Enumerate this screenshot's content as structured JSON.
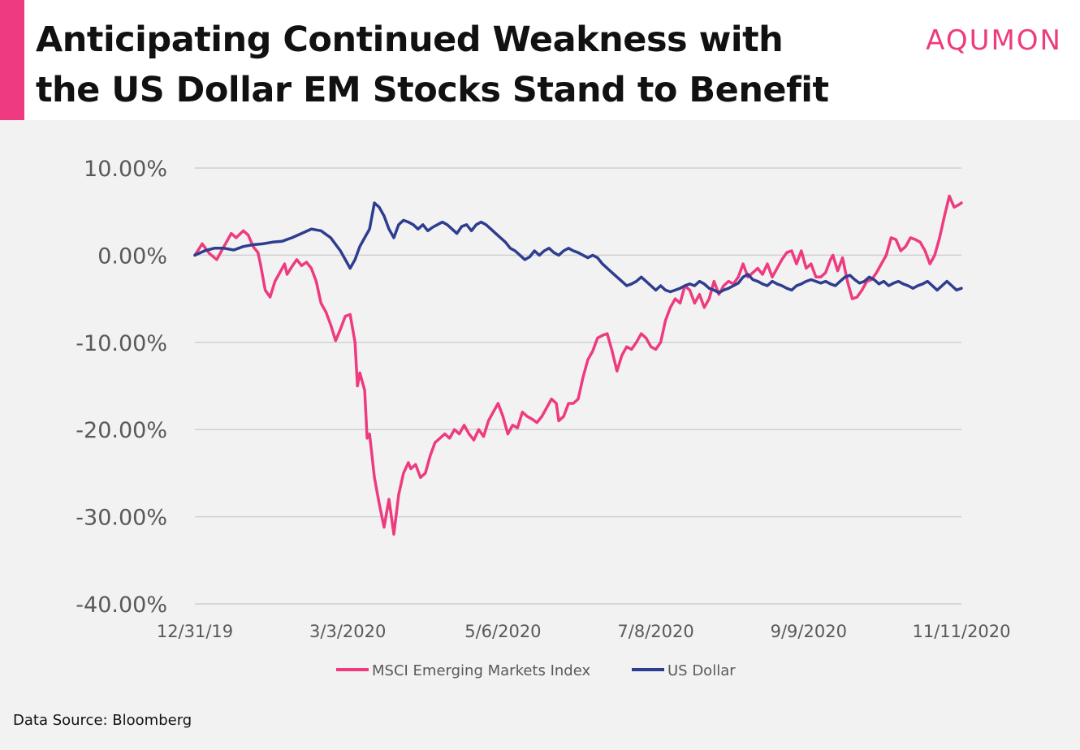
{
  "header": {
    "title_line1": "Anticipating Continued Weakness with",
    "title_line2": "the US Dollar EM Stocks Stand to Benefit",
    "logo": "AQUMON",
    "accent_color": "#ee3b7f"
  },
  "footer": {
    "source": "Data Source: Bloomberg"
  },
  "chart_data": {
    "type": "line",
    "title": "",
    "xlabel": "",
    "ylabel": "",
    "ylim": [
      -40,
      10
    ],
    "xlim": [
      0,
      316
    ],
    "y_ticks": [
      {
        "value": 10,
        "label": "10.00%"
      },
      {
        "value": 0,
        "label": "0.00%"
      },
      {
        "value": -10,
        "label": "-10.00%"
      },
      {
        "value": -20,
        "label": "-20.00%"
      },
      {
        "value": -30,
        "label": "-30.00%"
      },
      {
        "value": -40,
        "label": "-40.00%"
      }
    ],
    "x_ticks": [
      {
        "value": 0,
        "label": "12/31/19"
      },
      {
        "value": 63,
        "label": "3/3/2020"
      },
      {
        "value": 127,
        "label": "5/6/2020"
      },
      {
        "value": 190,
        "label": "7/8/2020"
      },
      {
        "value": 253,
        "label": "9/9/2020"
      },
      {
        "value": 316,
        "label": "11/11/2020"
      }
    ],
    "grid": true,
    "legend_position": "bottom",
    "x_unit": "days since 12/31/19",
    "series": [
      {
        "name": "MSCI Emerging Markets Index",
        "color": "#ee3b7f",
        "points": [
          [
            0,
            0
          ],
          [
            3,
            1.3
          ],
          [
            6,
            0.2
          ],
          [
            9,
            -0.5
          ],
          [
            12,
            1.0
          ],
          [
            15,
            2.5
          ],
          [
            17,
            2.0
          ],
          [
            20,
            2.8
          ],
          [
            22,
            2.3
          ],
          [
            24,
            1.0
          ],
          [
            26,
            0.3
          ],
          [
            27,
            -1.0
          ],
          [
            29,
            -4.0
          ],
          [
            31,
            -4.8
          ],
          [
            33,
            -3.0
          ],
          [
            35,
            -2.0
          ],
          [
            37,
            -1.0
          ],
          [
            38,
            -2.2
          ],
          [
            40,
            -1.3
          ],
          [
            42,
            -0.5
          ],
          [
            44,
            -1.2
          ],
          [
            46,
            -0.8
          ],
          [
            48,
            -1.5
          ],
          [
            50,
            -3.0
          ],
          [
            52,
            -5.5
          ],
          [
            54,
            -6.5
          ],
          [
            56,
            -8.0
          ],
          [
            58,
            -9.8
          ],
          [
            60,
            -8.5
          ],
          [
            62,
            -7.0
          ],
          [
            64,
            -6.8
          ],
          [
            66,
            -10.0
          ],
          [
            67,
            -15.0
          ],
          [
            68,
            -13.5
          ],
          [
            70,
            -15.5
          ],
          [
            71,
            -21.0
          ],
          [
            72,
            -20.5
          ],
          [
            74,
            -25.5
          ],
          [
            76,
            -28.5
          ],
          [
            78,
            -31.2
          ],
          [
            80,
            -28.0
          ],
          [
            82,
            -32.0
          ],
          [
            84,
            -27.5
          ],
          [
            86,
            -25.0
          ],
          [
            88,
            -23.8
          ],
          [
            89,
            -24.5
          ],
          [
            91,
            -24.0
          ],
          [
            93,
            -25.5
          ],
          [
            95,
            -25.0
          ],
          [
            97,
            -23.0
          ],
          [
            99,
            -21.5
          ],
          [
            101,
            -21.0
          ],
          [
            103,
            -20.5
          ],
          [
            105,
            -21.0
          ],
          [
            107,
            -20.0
          ],
          [
            109,
            -20.5
          ],
          [
            111,
            -19.5
          ],
          [
            113,
            -20.5
          ],
          [
            115,
            -21.2
          ],
          [
            117,
            -20.0
          ],
          [
            119,
            -20.8
          ],
          [
            121,
            -19.0
          ],
          [
            123,
            -18.0
          ],
          [
            125,
            -17.0
          ],
          [
            127,
            -18.5
          ],
          [
            129,
            -20.5
          ],
          [
            131,
            -19.5
          ],
          [
            133,
            -19.8
          ],
          [
            135,
            -18.0
          ],
          [
            137,
            -18.5
          ],
          [
            139,
            -18.8
          ],
          [
            141,
            -19.2
          ],
          [
            143,
            -18.5
          ],
          [
            145,
            -17.5
          ],
          [
            147,
            -16.5
          ],
          [
            149,
            -17.0
          ],
          [
            150,
            -19.0
          ],
          [
            152,
            -18.5
          ],
          [
            154,
            -17.0
          ],
          [
            156,
            -17.0
          ],
          [
            158,
            -16.5
          ],
          [
            160,
            -14.0
          ],
          [
            162,
            -12.0
          ],
          [
            164,
            -11.0
          ],
          [
            166,
            -9.5
          ],
          [
            168,
            -9.2
          ],
          [
            170,
            -9.0
          ],
          [
            172,
            -11.0
          ],
          [
            174,
            -13.3
          ],
          [
            176,
            -11.5
          ],
          [
            178,
            -10.5
          ],
          [
            180,
            -10.8
          ],
          [
            182,
            -10.0
          ],
          [
            184,
            -9.0
          ],
          [
            186,
            -9.5
          ],
          [
            188,
            -10.5
          ],
          [
            190,
            -10.8
          ],
          [
            192,
            -10.0
          ],
          [
            194,
            -7.5
          ],
          [
            196,
            -6.0
          ],
          [
            198,
            -5.0
          ],
          [
            200,
            -5.5
          ],
          [
            202,
            -3.5
          ],
          [
            204,
            -4.0
          ],
          [
            206,
            -5.5
          ],
          [
            208,
            -4.5
          ],
          [
            210,
            -6.0
          ],
          [
            212,
            -5.0
          ],
          [
            214,
            -3.0
          ],
          [
            216,
            -4.5
          ],
          [
            218,
            -3.5
          ],
          [
            220,
            -3.0
          ],
          [
            222,
            -3.3
          ],
          [
            224,
            -2.5
          ],
          [
            226,
            -1.0
          ],
          [
            228,
            -2.5
          ],
          [
            230,
            -2.0
          ],
          [
            232,
            -1.5
          ],
          [
            234,
            -2.2
          ],
          [
            236,
            -1.0
          ],
          [
            238,
            -2.5
          ],
          [
            240,
            -1.5
          ],
          [
            242,
            -0.5
          ],
          [
            244,
            0.3
          ],
          [
            246,
            0.5
          ],
          [
            248,
            -1.0
          ],
          [
            250,
            0.5
          ],
          [
            252,
            -1.5
          ],
          [
            254,
            -1.0
          ],
          [
            256,
            -2.5
          ],
          [
            258,
            -2.5
          ],
          [
            260,
            -2.0
          ],
          [
            262,
            -0.5
          ],
          [
            263,
            0.0
          ],
          [
            265,
            -1.8
          ],
          [
            267,
            -0.3
          ],
          [
            269,
            -3.0
          ],
          [
            271,
            -5.0
          ],
          [
            273,
            -4.8
          ],
          [
            275,
            -4.0
          ],
          [
            277,
            -3.0
          ],
          [
            279,
            -2.8
          ],
          [
            281,
            -2.0
          ],
          [
            283,
            -1.0
          ],
          [
            285,
            0.0
          ],
          [
            287,
            2.0
          ],
          [
            289,
            1.8
          ],
          [
            291,
            0.5
          ],
          [
            293,
            1.0
          ],
          [
            295,
            2.0
          ],
          [
            297,
            1.8
          ],
          [
            299,
            1.5
          ],
          [
            301,
            0.5
          ],
          [
            303,
            -1.0
          ],
          [
            305,
            0.0
          ],
          [
            307,
            2.0
          ],
          [
            309,
            4.5
          ],
          [
            311,
            6.8
          ],
          [
            313,
            5.5
          ],
          [
            315,
            5.8
          ],
          [
            316,
            6.0
          ]
        ]
      },
      {
        "name": "US Dollar",
        "color": "#2e3d8f",
        "points": [
          [
            0,
            0
          ],
          [
            4,
            0.5
          ],
          [
            8,
            0.8
          ],
          [
            12,
            0.8
          ],
          [
            16,
            0.6
          ],
          [
            20,
            1.0
          ],
          [
            24,
            1.2
          ],
          [
            28,
            1.3
          ],
          [
            32,
            1.5
          ],
          [
            36,
            1.6
          ],
          [
            40,
            2.0
          ],
          [
            44,
            2.5
          ],
          [
            48,
            3.0
          ],
          [
            52,
            2.8
          ],
          [
            56,
            2.0
          ],
          [
            60,
            0.5
          ],
          [
            64,
            -1.5
          ],
          [
            66,
            -0.5
          ],
          [
            68,
            1.0
          ],
          [
            70,
            2.0
          ],
          [
            72,
            3.0
          ],
          [
            74,
            6.0
          ],
          [
            76,
            5.5
          ],
          [
            78,
            4.5
          ],
          [
            80,
            3.0
          ],
          [
            82,
            2.0
          ],
          [
            84,
            3.5
          ],
          [
            86,
            4.0
          ],
          [
            88,
            3.8
          ],
          [
            90,
            3.5
          ],
          [
            92,
            3.0
          ],
          [
            94,
            3.5
          ],
          [
            96,
            2.8
          ],
          [
            98,
            3.2
          ],
          [
            100,
            3.5
          ],
          [
            102,
            3.8
          ],
          [
            104,
            3.5
          ],
          [
            106,
            3.0
          ],
          [
            108,
            2.5
          ],
          [
            110,
            3.3
          ],
          [
            112,
            3.5
          ],
          [
            114,
            2.8
          ],
          [
            116,
            3.5
          ],
          [
            118,
            3.8
          ],
          [
            120,
            3.5
          ],
          [
            122,
            3.0
          ],
          [
            124,
            2.5
          ],
          [
            126,
            2.0
          ],
          [
            128,
            1.5
          ],
          [
            130,
            0.8
          ],
          [
            132,
            0.5
          ],
          [
            134,
            0.0
          ],
          [
            136,
            -0.5
          ],
          [
            138,
            -0.2
          ],
          [
            140,
            0.5
          ],
          [
            142,
            0.0
          ],
          [
            144,
            0.5
          ],
          [
            146,
            0.8
          ],
          [
            148,
            0.3
          ],
          [
            150,
            0.0
          ],
          [
            152,
            0.5
          ],
          [
            154,
            0.8
          ],
          [
            156,
            0.5
          ],
          [
            158,
            0.3
          ],
          [
            160,
            0.0
          ],
          [
            162,
            -0.3
          ],
          [
            164,
            0.0
          ],
          [
            166,
            -0.3
          ],
          [
            168,
            -1.0
          ],
          [
            170,
            -1.5
          ],
          [
            172,
            -2.0
          ],
          [
            174,
            -2.5
          ],
          [
            176,
            -3.0
          ],
          [
            178,
            -3.5
          ],
          [
            180,
            -3.3
          ],
          [
            182,
            -3.0
          ],
          [
            184,
            -2.5
          ],
          [
            186,
            -3.0
          ],
          [
            188,
            -3.5
          ],
          [
            190,
            -4.0
          ],
          [
            192,
            -3.5
          ],
          [
            194,
            -4.0
          ],
          [
            196,
            -4.2
          ],
          [
            198,
            -4.0
          ],
          [
            200,
            -3.8
          ],
          [
            202,
            -3.5
          ],
          [
            204,
            -3.3
          ],
          [
            206,
            -3.5
          ],
          [
            208,
            -3.0
          ],
          [
            210,
            -3.3
          ],
          [
            212,
            -3.8
          ],
          [
            214,
            -4.0
          ],
          [
            216,
            -4.3
          ],
          [
            218,
            -4.0
          ],
          [
            220,
            -3.8
          ],
          [
            222,
            -3.5
          ],
          [
            224,
            -3.2
          ],
          [
            226,
            -2.5
          ],
          [
            228,
            -2.2
          ],
          [
            230,
            -2.8
          ],
          [
            232,
            -3.0
          ],
          [
            234,
            -3.3
          ],
          [
            236,
            -3.5
          ],
          [
            238,
            -3.0
          ],
          [
            240,
            -3.3
          ],
          [
            242,
            -3.5
          ],
          [
            244,
            -3.8
          ],
          [
            246,
            -4.0
          ],
          [
            248,
            -3.5
          ],
          [
            250,
            -3.3
          ],
          [
            252,
            -3.0
          ],
          [
            254,
            -2.8
          ],
          [
            256,
            -3.0
          ],
          [
            258,
            -3.2
          ],
          [
            260,
            -3.0
          ],
          [
            262,
            -3.3
          ],
          [
            264,
            -3.5
          ],
          [
            266,
            -3.0
          ],
          [
            268,
            -2.5
          ],
          [
            270,
            -2.3
          ],
          [
            272,
            -2.8
          ],
          [
            274,
            -3.2
          ],
          [
            276,
            -3.0
          ],
          [
            278,
            -2.5
          ],
          [
            280,
            -2.8
          ],
          [
            282,
            -3.3
          ],
          [
            284,
            -3.0
          ],
          [
            286,
            -3.5
          ],
          [
            288,
            -3.2
          ],
          [
            290,
            -3.0
          ],
          [
            292,
            -3.3
          ],
          [
            294,
            -3.5
          ],
          [
            296,
            -3.8
          ],
          [
            298,
            -3.5
          ],
          [
            300,
            -3.3
          ],
          [
            302,
            -3.0
          ],
          [
            304,
            -3.5
          ],
          [
            306,
            -4.0
          ],
          [
            308,
            -3.5
          ],
          [
            310,
            -3.0
          ],
          [
            312,
            -3.5
          ],
          [
            314,
            -4.0
          ],
          [
            316,
            -3.8
          ]
        ]
      }
    ]
  }
}
